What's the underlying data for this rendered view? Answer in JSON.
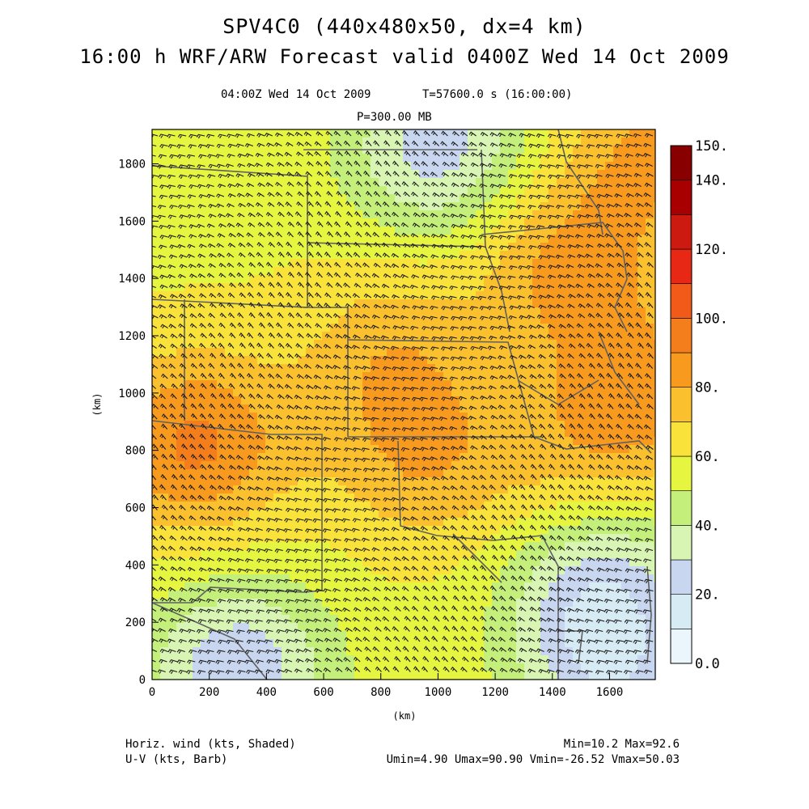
{
  "header": {
    "title": "SPV4C0 (440x480x50, dx=4 km)",
    "subtitle": "16:00 h WRF/ARW Forecast valid 0400Z Wed 14 Oct 2009",
    "valid_time": "04:00Z Wed 14 Oct 2009",
    "model_time": "T=57600.0 s (16:00:00)",
    "level": "P=300.00 MB"
  },
  "chart_data": {
    "type": "heatmap",
    "xlabel": "(km)",
    "ylabel": "(km)",
    "xlim": [
      0,
      1760
    ],
    "ylim": [
      0,
      1920
    ],
    "x_ticks": [
      "0",
      "200",
      "400",
      "600",
      "800",
      "1000",
      "1200",
      "1400",
      "1600"
    ],
    "y_ticks": [
      "0",
      "200",
      "400",
      "600",
      "800",
      "1000",
      "1200",
      "1400",
      "1600",
      "1800"
    ],
    "colorbar": {
      "range": [
        0,
        150
      ],
      "labels": [
        "0.0",
        "20.",
        "40.",
        "60.",
        "80.",
        "100.",
        "120.",
        "140.",
        "150."
      ],
      "levels": [
        0,
        10,
        20,
        30,
        40,
        50,
        60,
        70,
        80,
        90,
        100,
        110,
        120,
        130,
        140,
        150
      ],
      "colors": [
        "#eaf6fb",
        "#d6ebf4",
        "#c8d6f0",
        "#d8f5b4",
        "#c4ef7a",
        "#e6f540",
        "#f9e23a",
        "#fbc02d",
        "#f89a1e",
        "#f57e1c",
        "#f25a1a",
        "#e62814",
        "#cc1a10",
        "#a80000",
        "#880000"
      ]
    },
    "field_hotspots": [
      {
        "x": 150,
        "y": 820,
        "speed": 92,
        "label": "Max=92.6"
      },
      {
        "x": 1450,
        "y": 1450,
        "speed": 82
      },
      {
        "x": 1700,
        "y": 1000,
        "speed": 82
      },
      {
        "x": 950,
        "y": 780,
        "speed": 78
      },
      {
        "x": 1500,
        "y": 650,
        "speed": 78
      },
      {
        "x": 830,
        "y": 1150,
        "speed": 75
      },
      {
        "x": 1750,
        "y": 1850,
        "speed": 80
      },
      {
        "x": 1550,
        "y": 420,
        "speed": 26
      },
      {
        "x": 1000,
        "y": 1860,
        "speed": 25
      },
      {
        "x": 300,
        "y": 30,
        "speed": 22
      },
      {
        "x": 1600,
        "y": 60,
        "speed": 24
      }
    ]
  },
  "footer": {
    "left_line1": "Horiz. wind (kts, Shaded)",
    "left_line2": "U-V (kts, Barb)",
    "right_line1": "Min=10.2 Max=92.6",
    "right_line2": "Umin=4.90 Umax=90.90 Vmin=-26.52 Vmax=50.03"
  },
  "colors": {
    "border_lines": "#606060",
    "barbs": "#1a1a1a"
  }
}
